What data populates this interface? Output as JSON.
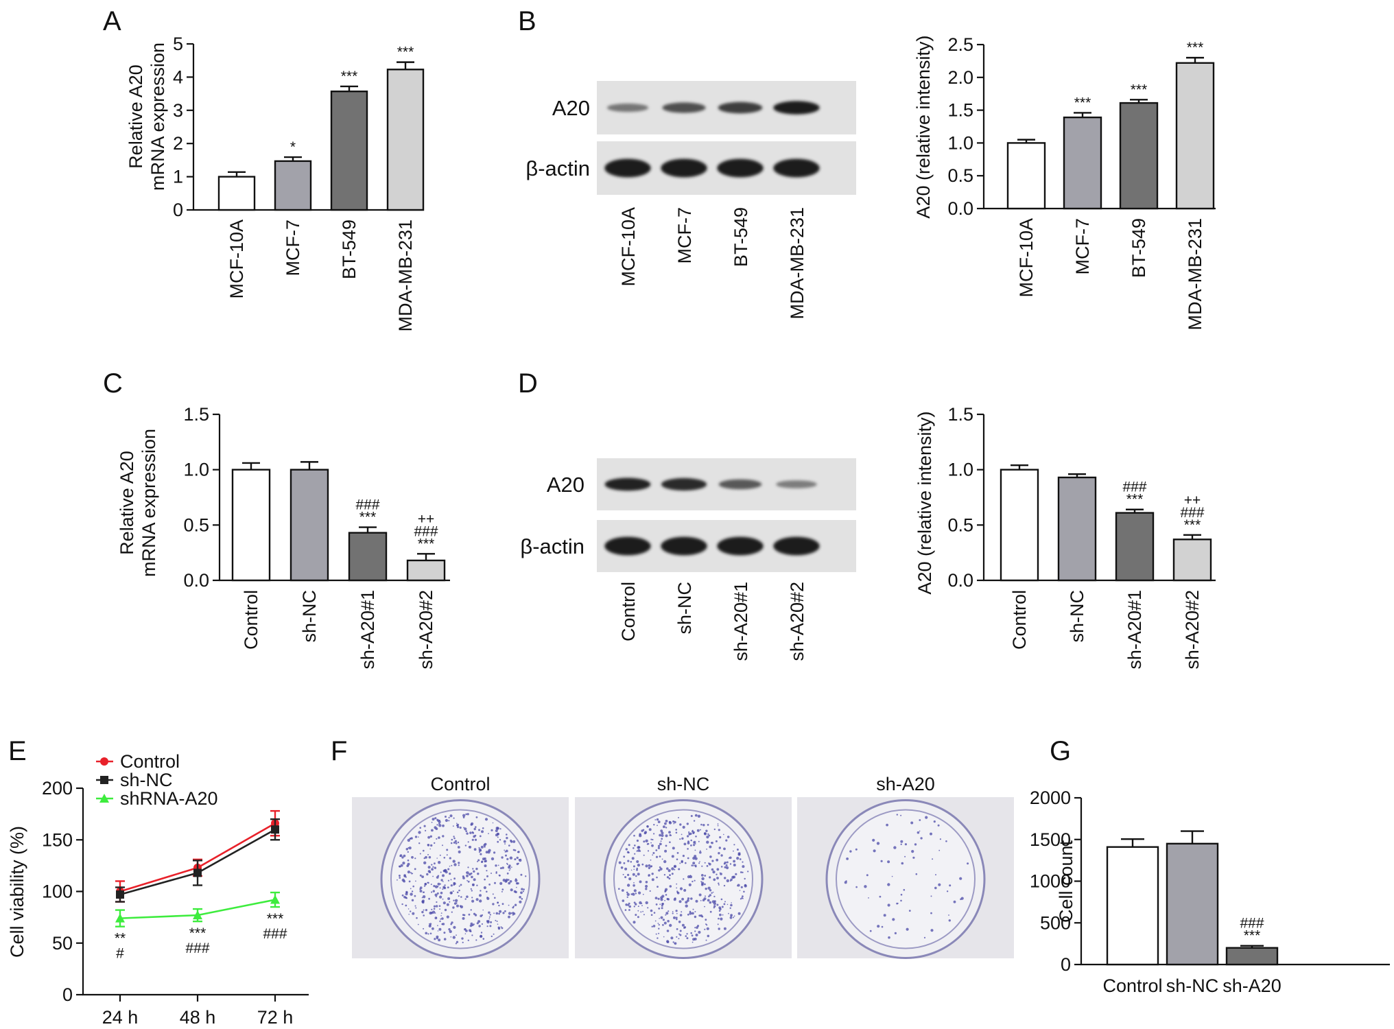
{
  "panel_letters": [
    "A",
    "B",
    "C",
    "D",
    "E",
    "F",
    "G"
  ],
  "blots": {
    "B": {
      "rows": [
        "A20",
        "β-actin"
      ],
      "lanes": [
        "MCF-10A",
        "MCF-7",
        "BT-549",
        "MDA-MB-231"
      ],
      "band_strength": [
        [
          0.35,
          0.6,
          0.72,
          0.95
        ],
        [
          0.95,
          0.95,
          0.95,
          0.95
        ]
      ]
    },
    "D": {
      "rows": [
        "A20",
        "β-actin"
      ],
      "lanes": [
        "Control",
        "sh-NC",
        "sh-A20#1",
        "sh-A20#2"
      ],
      "band_strength": [
        [
          0.9,
          0.85,
          0.55,
          0.3
        ],
        [
          0.95,
          0.95,
          0.95,
          0.95
        ]
      ]
    }
  },
  "colony_plates": {
    "labels": [
      "Control",
      "sh-NC",
      "sh-A20"
    ],
    "density": [
      0.85,
      0.8,
      0.12
    ],
    "dish_color": "#e6e5ea",
    "colony_color": "#4b4aa8"
  },
  "chart_data": [
    {
      "panel": "A",
      "type": "bar",
      "categories": [
        "MCF-10A",
        "MCF-7",
        "BT-549",
        "MDA-MB-231"
      ],
      "values": [
        1.0,
        1.47,
        3.57,
        4.23
      ],
      "errors": [
        0.14,
        0.12,
        0.15,
        0.22
      ],
      "annotations": [
        "",
        "*",
        "***",
        "***"
      ],
      "colors": [
        "#ffffff",
        "#a2a2aa",
        "#727272",
        "#d2d2d2"
      ],
      "ylabel": [
        "Relative A20",
        "mRNA expression"
      ],
      "ylim": [
        0,
        5
      ],
      "yticks": [
        "0",
        "1",
        "2",
        "3",
        "4",
        "5"
      ]
    },
    {
      "panel": "B",
      "type": "bar",
      "categories": [
        "MCF-10A",
        "MCF-7",
        "BT-549",
        "MDA-MB-231"
      ],
      "values": [
        1.0,
        1.39,
        1.61,
        2.22
      ],
      "errors": [
        0.05,
        0.07,
        0.05,
        0.08
      ],
      "annotations": [
        "",
        "***",
        "***",
        "***"
      ],
      "colors": [
        "#ffffff",
        "#a2a2aa",
        "#727272",
        "#d2d2d2"
      ],
      "ylabel": [
        "A20 (relative intensity)"
      ],
      "ylim": [
        0,
        2.5
      ],
      "yticks": [
        "0.0",
        "0.5",
        "1.0",
        "1.5",
        "2.0",
        "2.5"
      ]
    },
    {
      "panel": "C",
      "type": "bar",
      "categories": [
        "Control",
        "sh-NC",
        "sh-A20#1",
        "sh-A20#2"
      ],
      "values": [
        1.0,
        1.0,
        0.43,
        0.18
      ],
      "errors": [
        0.06,
        0.07,
        0.05,
        0.06
      ],
      "annotations": [
        [],
        [],
        [
          "###",
          "***"
        ],
        [
          "++",
          "###",
          "***"
        ]
      ],
      "colors": [
        "#ffffff",
        "#a2a2aa",
        "#727272",
        "#d2d2d2"
      ],
      "ylabel": [
        "Relative A20",
        "mRNA expression"
      ],
      "ylim": [
        0,
        1.5
      ],
      "yticks": [
        "0.0",
        "0.5",
        "1.0",
        "1.5"
      ]
    },
    {
      "panel": "D",
      "type": "bar",
      "categories": [
        "Control",
        "sh-NC",
        "sh-A20#1",
        "sh-A20#2"
      ],
      "values": [
        1.0,
        0.93,
        0.61,
        0.37
      ],
      "errors": [
        0.04,
        0.03,
        0.03,
        0.04
      ],
      "annotations": [
        [],
        [],
        [
          "###",
          "***"
        ],
        [
          "++",
          "###",
          "***"
        ]
      ],
      "colors": [
        "#ffffff",
        "#a2a2aa",
        "#727272",
        "#d2d2d2"
      ],
      "ylabel": [
        "A20 (relative intensity)"
      ],
      "ylim": [
        0,
        1.5
      ],
      "yticks": [
        "0.0",
        "0.5",
        "1.0",
        "1.5"
      ]
    },
    {
      "panel": "E",
      "type": "line",
      "x": [
        "24 h",
        "48 h",
        "72 h"
      ],
      "series": [
        {
          "name": "Control",
          "color": "#e8212a",
          "marker": "circle",
          "values": [
            100,
            123,
            166
          ],
          "errors": [
            10,
            8,
            12
          ]
        },
        {
          "name": "sh-NC",
          "color": "#222222",
          "marker": "square",
          "values": [
            97,
            118,
            160
          ],
          "errors": [
            7,
            12,
            10
          ]
        },
        {
          "name": "shRNA-A20",
          "color": "#3dec3d",
          "marker": "triangle",
          "values": [
            74,
            77,
            92
          ],
          "errors": [
            8,
            6,
            7
          ]
        }
      ],
      "annotations": [
        [
          "**",
          "#"
        ],
        [
          "***",
          "###"
        ],
        [
          "***",
          "###"
        ]
      ],
      "ylabel": "Cell viability (%)",
      "ylim": [
        0,
        200
      ],
      "yticks": [
        "0",
        "50",
        "100",
        "150",
        "200"
      ]
    },
    {
      "panel": "G",
      "type": "bar",
      "categories": [
        "Control",
        "sh-NC",
        "sh-A20"
      ],
      "values": [
        1410,
        1450,
        200
      ],
      "errors": [
        95,
        150,
        25
      ],
      "annotations": [
        [],
        [],
        [
          "###",
          "***"
        ]
      ],
      "colors": [
        "#ffffff",
        "#a2a2aa",
        "#727272"
      ],
      "ylabel": [
        "Cell count"
      ],
      "ylim": [
        0,
        2000
      ],
      "yticks": [
        "0",
        "500",
        "1000",
        "1500",
        "2000"
      ]
    }
  ]
}
